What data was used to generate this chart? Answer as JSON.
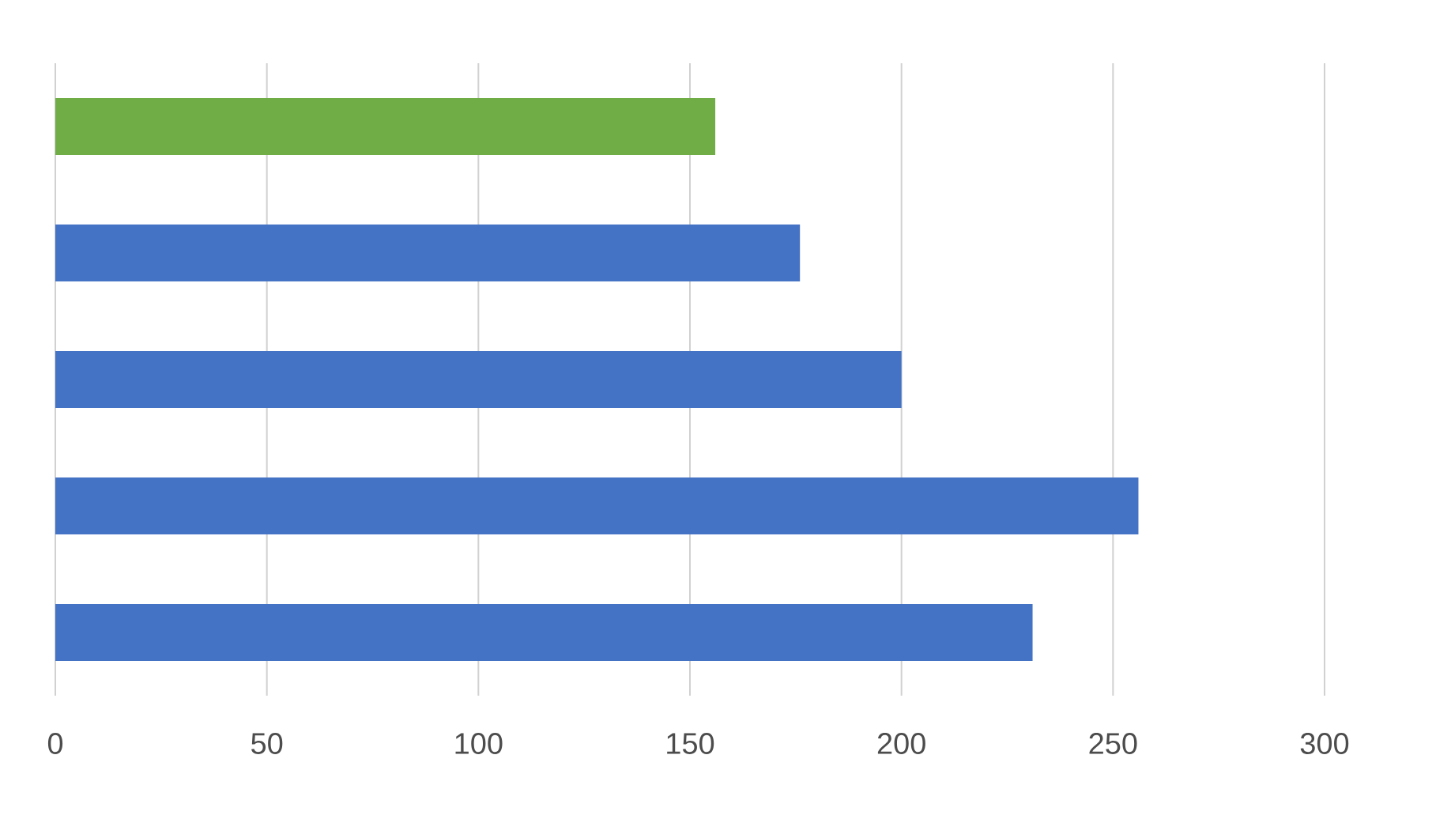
{
  "chart_data": {
    "type": "bar",
    "orientation": "horizontal",
    "categories": [
      null,
      null,
      null,
      null,
      null
    ],
    "values": [
      156,
      176,
      200,
      256,
      231
    ],
    "colors": [
      "#70ad47",
      "#4472c4",
      "#4472c4",
      "#4472c4",
      "#4472c4"
    ],
    "xlim": [
      0,
      300
    ],
    "xticks": [
      0,
      50,
      100,
      150,
      200,
      250,
      300
    ],
    "grid": "x"
  }
}
